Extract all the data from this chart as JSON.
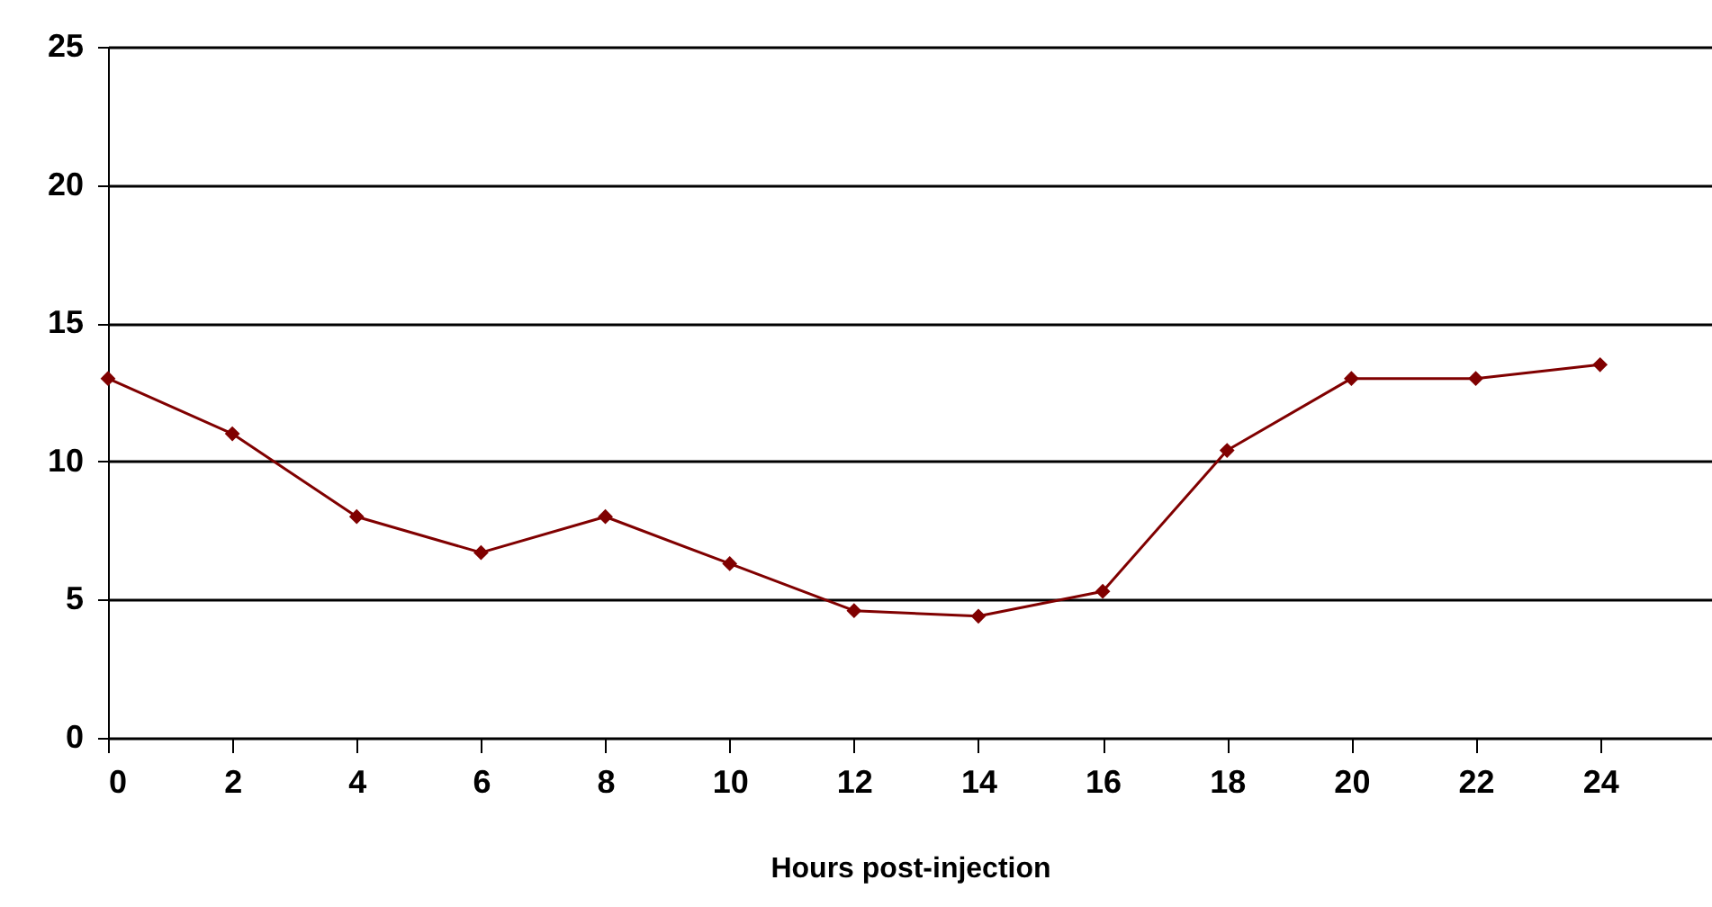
{
  "chart_data": {
    "type": "line",
    "xlabel": "Hours post-injection",
    "x": [
      0,
      2,
      4,
      6,
      8,
      10,
      12,
      14,
      16,
      18,
      20,
      22,
      24
    ],
    "series": [
      {
        "color": "#800000",
        "values": [
          13,
          11,
          8,
          6.7,
          8,
          6.3,
          4.6,
          4.4,
          5.3,
          10.4,
          13,
          13,
          13.5
        ]
      }
    ],
    "xlim": [
      0,
      25.8
    ],
    "xticks": [
      0,
      2,
      4,
      6,
      8,
      10,
      12,
      14,
      16,
      18,
      20,
      22,
      24
    ],
    "ylim": [
      0,
      25
    ],
    "yticks": [
      0,
      5,
      10,
      15,
      20,
      25
    ],
    "grid": "y",
    "marker": "diamond",
    "line_style": "solid"
  }
}
